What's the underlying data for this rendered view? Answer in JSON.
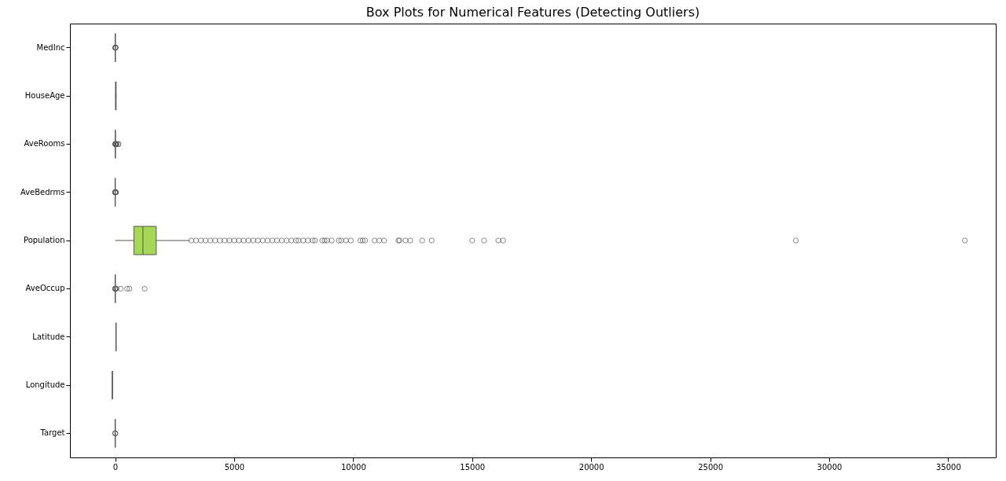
{
  "chart_data": {
    "type": "box",
    "orientation": "horizontal",
    "title": "Box Plots for Numerical Features (Detecting Outliers)",
    "categories": [
      "MedInc",
      "HouseAge",
      "AveRooms",
      "AveBedrms",
      "Population",
      "AveOccup",
      "Latitude",
      "Longitude",
      "Target"
    ],
    "colors": [
      null,
      null,
      null,
      null,
      "#a6d854",
      null,
      null,
      null,
      null
    ],
    "boxes": [
      {
        "low": 0.5,
        "q1": 2.56,
        "median": 3.53,
        "q3": 4.74,
        "high": 8.01,
        "outliers": [
          8.5,
          9.5,
          10.5,
          12,
          13.5,
          15
        ]
      },
      {
        "low": 1,
        "q1": 18,
        "median": 29,
        "q3": 37,
        "high": 52
      },
      {
        "low": 2.03,
        "q1": 4.44,
        "median": 5.23,
        "q3": 6.05,
        "high": 8.47,
        "outliers": [
          0.85,
          1.5,
          10,
          20,
          37,
          50,
          62,
          133,
          142
        ]
      },
      {
        "low": 0.87,
        "q1": 1.01,
        "median": 1.05,
        "q3": 1.1,
        "high": 1.24,
        "outliers": [
          0.33,
          0.6,
          1.5,
          3,
          5,
          10,
          15,
          25,
          34
        ]
      },
      {
        "low": 3,
        "q1": 787,
        "median": 1166,
        "q3": 1725,
        "high": 3131,
        "outliers": [
          3200,
          3400,
          3600,
          3800,
          4000,
          4200,
          4400,
          4600,
          4800,
          5000,
          5200,
          5400,
          5600,
          5800,
          6000,
          6200,
          6400,
          6600,
          6800,
          7000,
          7200,
          7400,
          7600,
          7700,
          7900,
          8100,
          8300,
          8400,
          8700,
          8800,
          8900,
          9100,
          9400,
          9500,
          9700,
          9900,
          10300,
          10400,
          10500,
          10900,
          11100,
          11300,
          11900,
          11950,
          12200,
          12400,
          12900,
          13300,
          15000,
          15500,
          16100,
          16300,
          28600,
          35700
        ]
      },
      {
        "low": 1.16,
        "q1": 2.43,
        "median": 2.82,
        "q3": 3.28,
        "high": 4.56,
        "outliers": [
          0.69,
          0.9,
          5,
          10,
          20,
          60,
          230,
          500,
          600,
          1240
        ]
      },
      {
        "low": 32.54,
        "q1": 33.93,
        "median": 34.26,
        "q3": 37.71,
        "high": 41.95
      },
      {
        "low": -124.35,
        "q1": -121.8,
        "median": -118.49,
        "q3": -118.01,
        "high": -114.31
      },
      {
        "low": 0.15,
        "q1": 1.2,
        "median": 1.8,
        "q3": 2.65,
        "high": 4.82,
        "outliers": [
          4.85,
          4.9,
          5
        ]
      }
    ],
    "xlim": [
      -1900,
      37000
    ],
    "xticks": [
      0,
      5000,
      10000,
      15000,
      20000,
      25000,
      30000,
      35000
    ],
    "grid": false
  }
}
